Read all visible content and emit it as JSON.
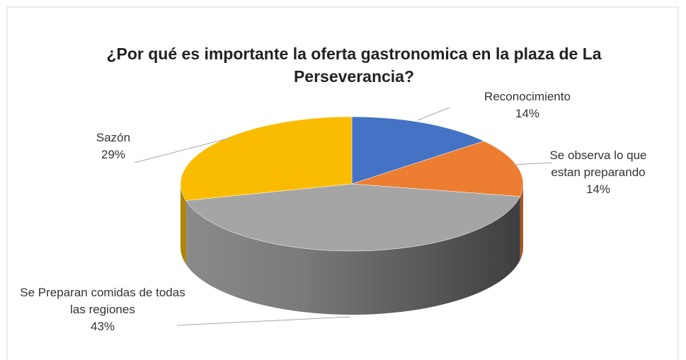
{
  "chart_data": {
    "type": "pie",
    "title": "¿Por qué es importante la oferta gastronomica en la plaza de La Perseverancia?",
    "categories": [
      "Reconocimiento",
      "Se observa lo que estan preparando",
      "Se Preparan comidas de todas las regiones",
      "Sazón"
    ],
    "values": [
      14,
      14,
      43,
      29
    ],
    "value_labels": [
      "14%",
      "14%",
      "43%",
      "29%"
    ],
    "colors": [
      "#4472c4",
      "#ed7d31",
      "#a5a5a5",
      "#f9bc00"
    ]
  }
}
